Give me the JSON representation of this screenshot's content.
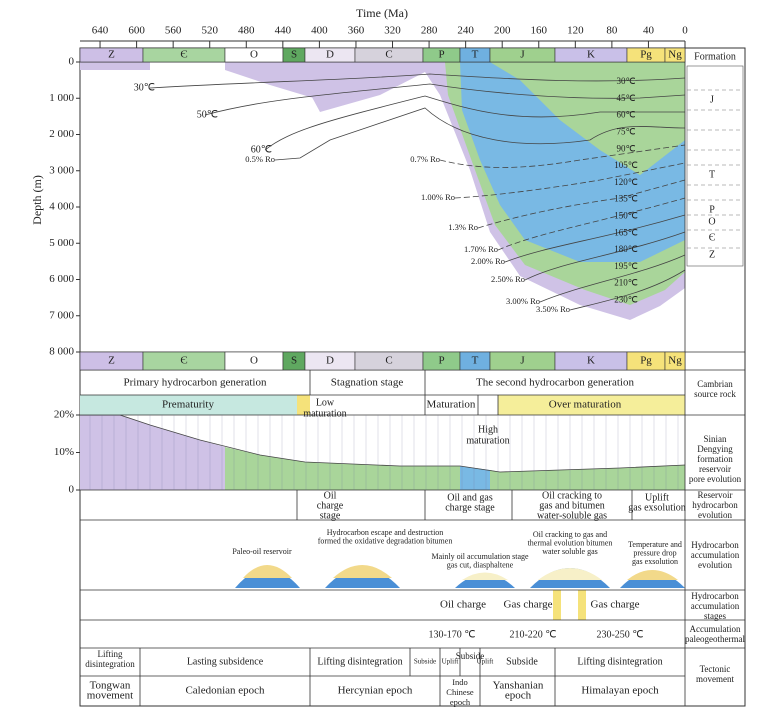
{
  "chart_data": {
    "type": "burial-history",
    "time_axis": {
      "title": "Time (Ma)",
      "ticks": [
        640,
        600,
        560,
        520,
        480,
        440,
        400,
        360,
        320,
        280,
        240,
        200,
        160,
        120,
        80,
        40,
        0
      ],
      "xlim": [
        662,
        0
      ]
    },
    "depth_axis": {
      "title": "Depth (m)",
      "ylim": [
        0,
        8000
      ],
      "ticks": [
        0,
        {
          "value": 1000,
          "label": "1 000"
        },
        {
          "value": 2000,
          "label": "2 000"
        },
        {
          "value": 3000,
          "label": "3 000"
        },
        {
          "value": 4000,
          "label": "4 000"
        },
        {
          "value": 5000,
          "label": "5 000"
        },
        {
          "value": 6000,
          "label": "6 000"
        },
        {
          "value": 7000,
          "label": "7 000"
        },
        {
          "value": 8000,
          "label": "8 000"
        }
      ]
    },
    "periods": [
      "Z",
      "Є",
      "O",
      "S",
      "D",
      "C",
      "P",
      "T",
      "J",
      "K",
      "Pg",
      "Ng"
    ],
    "formation": {
      "title": "Formation",
      "units": [
        "J",
        "T",
        "P",
        "O",
        "Є",
        "Z"
      ]
    },
    "isotherms_left": [
      "30℃",
      "50℃",
      "60℃"
    ],
    "isotherms_right": [
      "30℃",
      "45℃",
      "60℃",
      "75℃",
      "90℃",
      "105℃",
      "120℃",
      "135℃",
      "150℃",
      "165℃",
      "180℃",
      "195℃",
      "210℃",
      "230℃"
    ],
    "ro_labels": [
      "0.5% Ro",
      "0.7% Ro",
      "1.00% Ro",
      "1.3% Ro",
      "1.70% Ro",
      "2.00% Ro",
      "2.50% Ro",
      "3.00% Ro",
      "3.50% Ro"
    ],
    "generation": [
      "Primary hydrocarbon generation",
      "Stagnation stage",
      "The second hydrocarbon generation"
    ],
    "maturity": [
      "Prematurity",
      "Maturation",
      "Over maturation"
    ],
    "maturity_notes": [
      [
        "Low",
        "maturation"
      ],
      [
        "High",
        "maturation"
      ]
    ],
    "porosity_axis": {
      "ylim": [
        0,
        20
      ],
      "ticks": [
        {
          "value": 20,
          "label": "20%"
        },
        {
          "value": 10,
          "label": "10%"
        },
        0
      ]
    },
    "reservoir_evolution": [
      [
        "Oil",
        "charge",
        "stage"
      ],
      [
        "Oil and gas",
        "charge stage"
      ],
      [
        "Oil cracking to",
        "gas and bitumen",
        "water-soluble gas"
      ],
      [
        "Uplift",
        "gas exsolution"
      ]
    ],
    "accumulation_evolution": [
      [
        "Paleo-oil reservoir"
      ],
      [
        "Hydrocarbon escape and destruction",
        "formed the oxidative degradation bitumen"
      ],
      [
        "Mainly oil accumulation stage",
        "gas cut, diasphaltene"
      ],
      [
        "Oil cracking to gas and",
        "thermal evolution bitumen",
        "water soluble gas"
      ],
      [
        "Temperature and",
        "pressure drop",
        "gas exsolution"
      ]
    ],
    "accumulation_stages": [
      "Oil charge",
      "Gas charge",
      "Gas charge"
    ],
    "paleogeothermal": [
      "130-170 ℃",
      "210-220 ℃",
      "230-250 ℃"
    ],
    "tectonics": [
      [
        "Lifting",
        "disintegration"
      ],
      [
        "Lasting subsidence"
      ],
      [
        "Lifting disintegration"
      ],
      [
        "Subside"
      ],
      [
        "Uplift"
      ],
      [
        "Subside"
      ],
      [
        "Uplift"
      ],
      [
        "Subside"
      ],
      [
        "Lifting disintegration"
      ]
    ],
    "epochs": [
      [
        "Tongwan",
        "movement"
      ],
      [
        "Caledonian epoch"
      ],
      [
        "Hercynian epoch"
      ],
      [
        "Indo",
        "Chinese",
        "epoch"
      ],
      [
        "Yanshanian",
        "epoch"
      ],
      [
        "Himalayan epoch"
      ]
    ],
    "side_labels": [
      [
        "Cambrian",
        "source rock"
      ],
      [
        "Sinian",
        "Dengying",
        "formation",
        "reservoir",
        "pore evolution"
      ],
      [
        "Reservoir",
        "hydrocarbon",
        "evolution"
      ],
      [
        "Hydrocarbon",
        "accumulation",
        "evolution"
      ],
      [
        "Hydrocarbon",
        "accumulation",
        "stages"
      ],
      [
        "Accumulation",
        "paleogeothermal"
      ],
      [
        "Tectonic",
        "movement"
      ]
    ]
  }
}
